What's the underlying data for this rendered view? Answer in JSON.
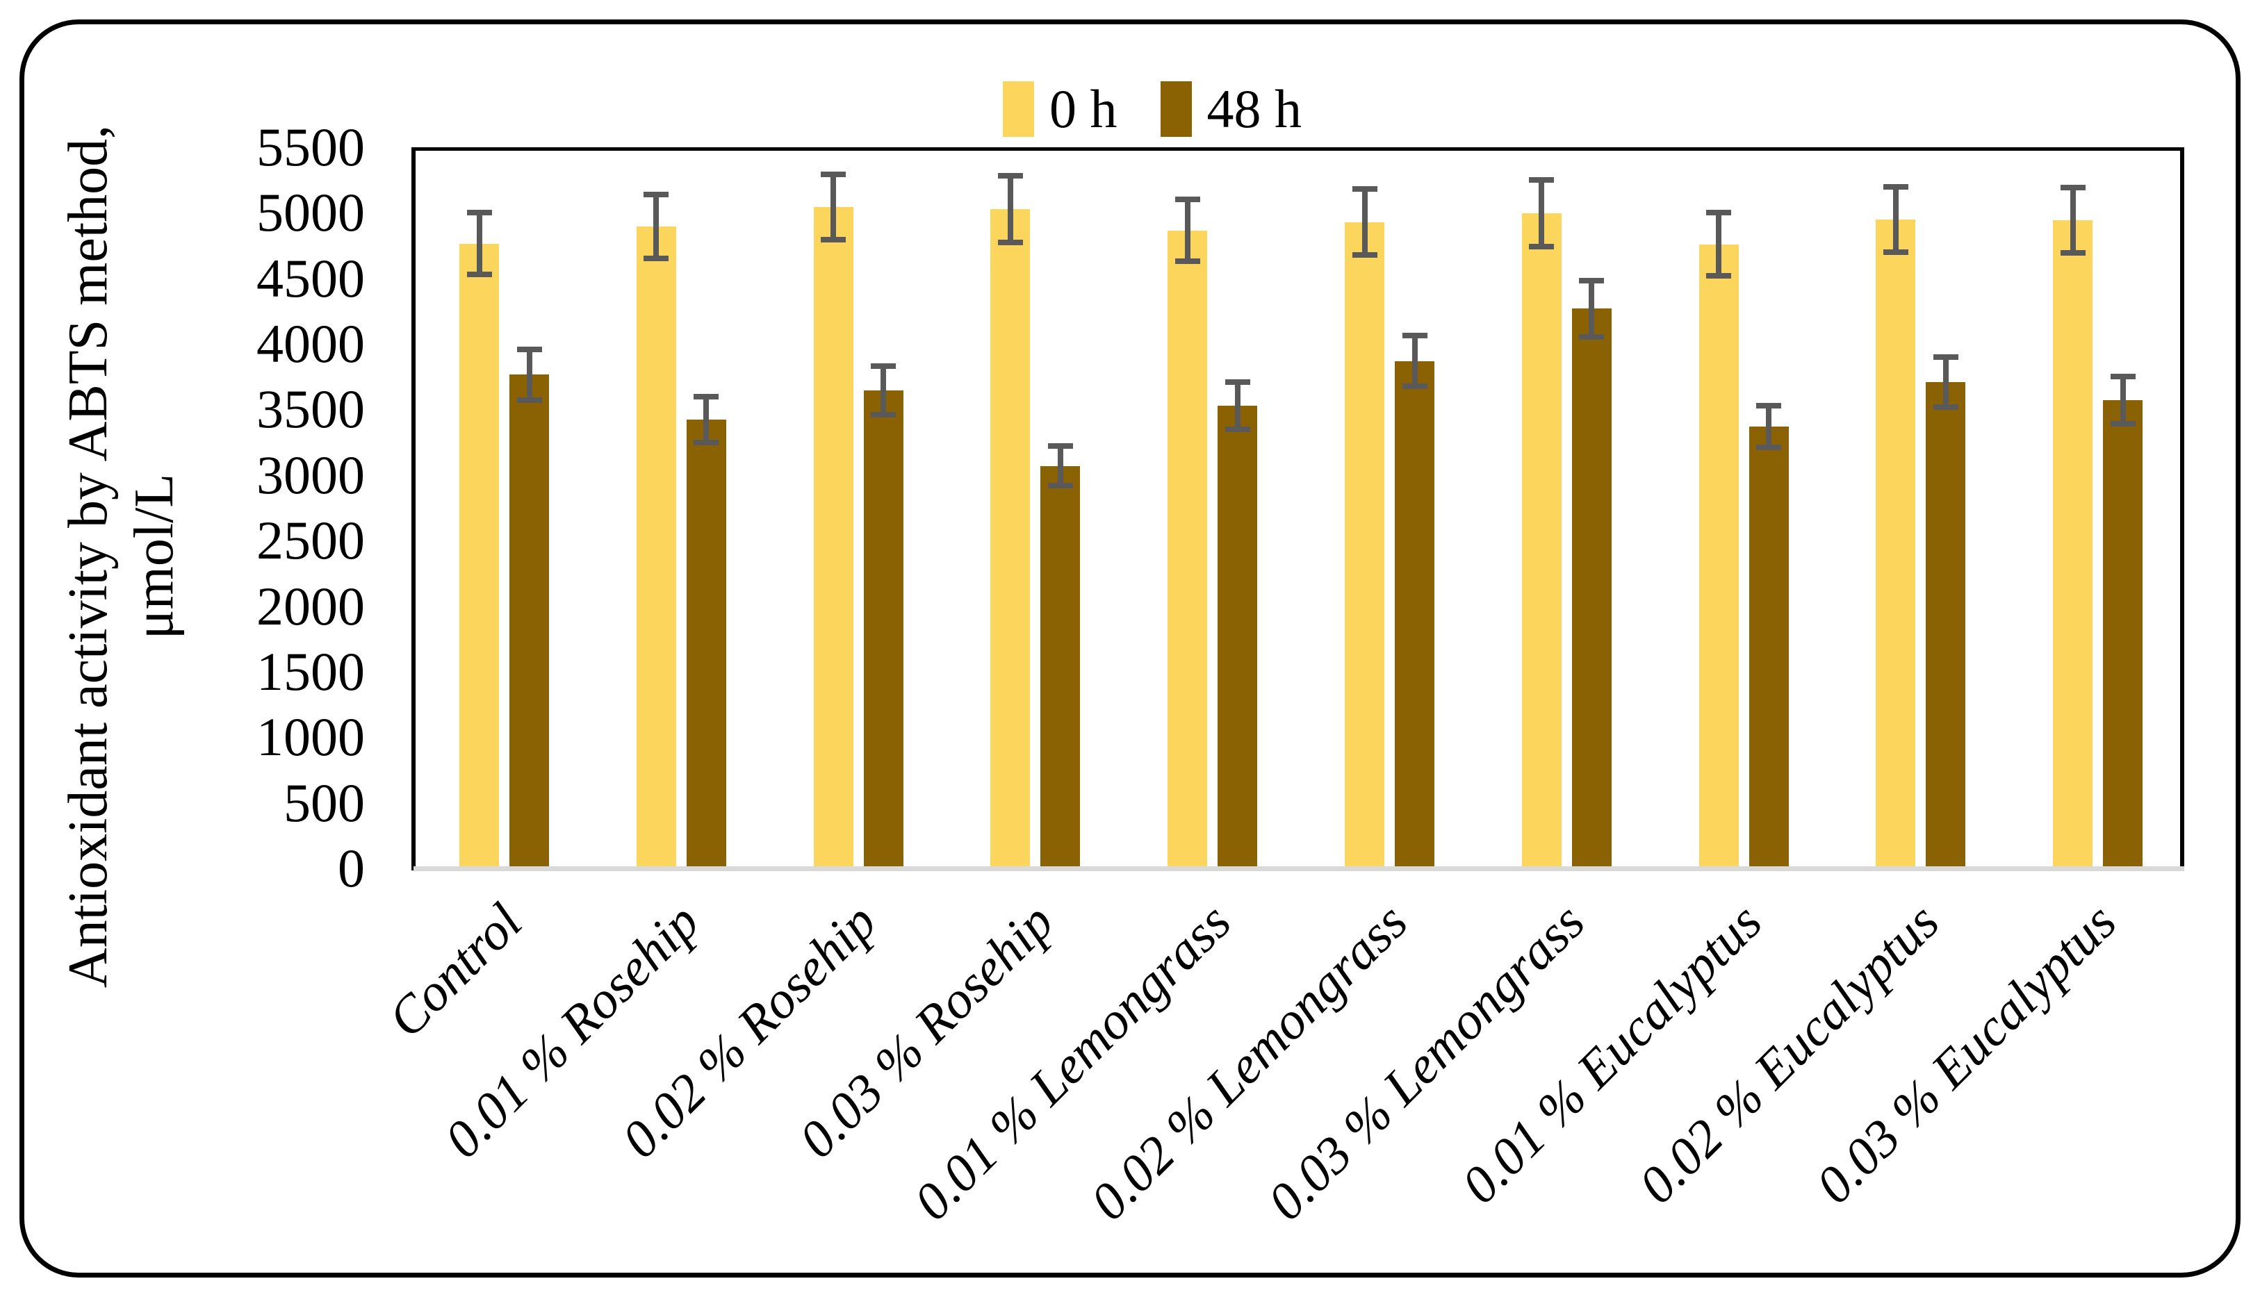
{
  "figure": {
    "kind": "grouped bar chart with error bars",
    "background": "#ffffff",
    "border_color": "#000000"
  },
  "legend": {
    "items": [
      {
        "label": "0 h",
        "color": "#fcd65c"
      },
      {
        "label": "48 h",
        "color": "#8a6203"
      }
    ]
  },
  "y_axis": {
    "title_line1": "Antioxidant activity by ABTS method,",
    "title_line2": "μmol/L",
    "ticks": [
      0,
      500,
      1000,
      1500,
      2000,
      2500,
      3000,
      3500,
      4000,
      4500,
      5000,
      5500
    ]
  },
  "chart_data": {
    "type": "bar",
    "title": "",
    "xlabel": "",
    "ylabel": "Antioxidant activity by ABTS method, μmol/L",
    "ylim": [
      0,
      5500
    ],
    "y_tick_step": 500,
    "grid": false,
    "legend_position": "top-center",
    "error_bar_color": "#595959",
    "axis_baseline_color": "#d9d9d9",
    "categories": [
      "Control",
      "0.01 % Rosehip",
      "0.02 % Rosehip",
      "0.03 % Rosehip",
      "0.01 % Lemongrass",
      "0.02 % Lemongrass",
      "0.03 % Lemongrass",
      "0.01 % Eucalyptus",
      "0.02 % Eucalyptus",
      "0.03 % Eucalyptus"
    ],
    "series": [
      {
        "name": "0 h",
        "color": "#fcd65c",
        "values": [
          4765,
          4895,
          5045,
          5030,
          4865,
          4930,
          4995,
          4760,
          4950,
          4945
        ],
        "errors": [
          235,
          245,
          250,
          255,
          235,
          250,
          255,
          240,
          250,
          250
        ]
      },
      {
        "name": "48 h",
        "color": "#8a6203",
        "values": [
          3765,
          3425,
          3645,
          3070,
          3530,
          3870,
          4270,
          3370,
          3710,
          3570
        ],
        "errors": [
          195,
          175,
          185,
          150,
          180,
          195,
          215,
          160,
          190,
          180
        ]
      }
    ]
  }
}
